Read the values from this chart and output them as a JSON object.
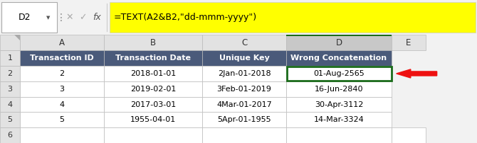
{
  "cell_ref": "D2",
  "formula": "=TEXT(A2&B2,\"dd-mmm-yyyy\")",
  "col_letters": [
    "A",
    "B",
    "C",
    "D",
    "E"
  ],
  "header_row": [
    "Transaction ID",
    "Transaction Date",
    "Unique Key",
    "Wrong Concatenation"
  ],
  "row_numbers": [
    "1",
    "2",
    "3",
    "4",
    "5",
    "6"
  ],
  "rows": [
    [
      "2",
      "2018-01-01",
      "2Jan-01-2018",
      "01-Aug-2565"
    ],
    [
      "3",
      "2019-02-01",
      "3Feb-01-2019",
      "16-Jun-2840"
    ],
    [
      "4",
      "2017-03-01",
      "4Mar-01-2017",
      "30-Apr-3112"
    ],
    [
      "5",
      "1955-04-01",
      "5Apr-01-1955",
      "14-Mar-3324"
    ]
  ],
  "header_bg": "#4A5A7A",
  "header_fg": "#FFFFFF",
  "cell_bg": "#FFFFFF",
  "cell_fg": "#000000",
  "col_header_bg": "#E2E2E2",
  "col_header_fg": "#333333",
  "selected_col_bg": "#C8C8C8",
  "row_num_bg": "#E2E2E2",
  "row_num_fg": "#333333",
  "grid_color": "#BBBBBB",
  "selected_border_color": "#1A6B1A",
  "formula_bg": "#FFFF00",
  "toolbar_bg": "#F2F2F2",
  "arrow_color": "#EE1111",
  "selected_col_idx": 3,
  "selected_row_idx": 1
}
